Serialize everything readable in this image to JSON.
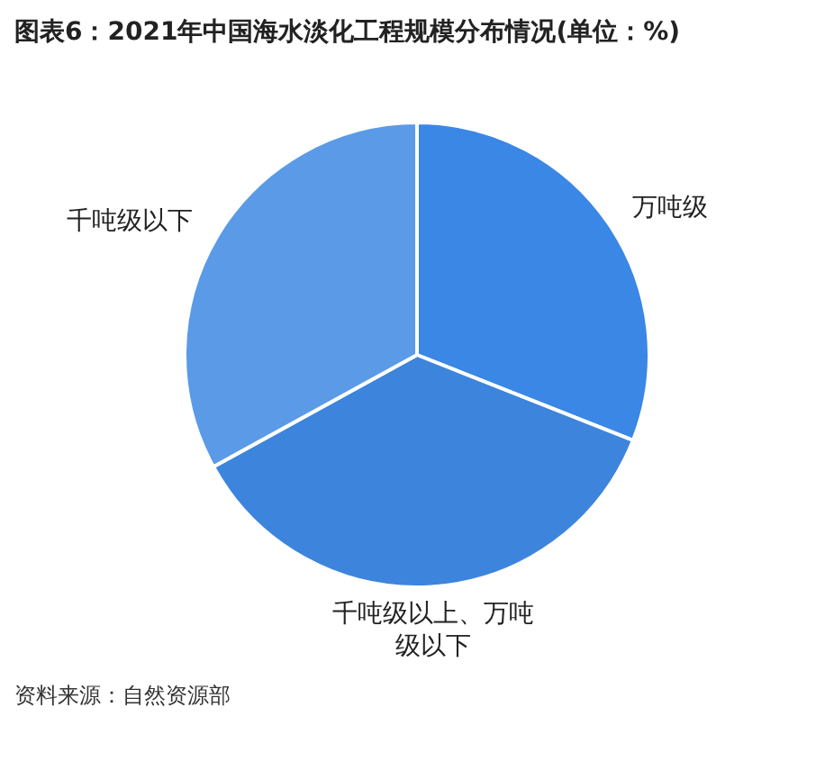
{
  "chart_data": {
    "type": "pie",
    "title": "图表6：2021年中国海水淡化工程规模分布情况(单位：%)",
    "categories": [
      "万吨级",
      "千吨级以上、万吨级以下",
      "千吨级以下"
    ],
    "values": [
      31,
      36,
      33
    ],
    "colors": [
      "#3a87e6",
      "#3d84dd",
      "#5a9ae6"
    ],
    "legend": false,
    "annotations": [
      "资料来源：自然资源部"
    ]
  }
}
